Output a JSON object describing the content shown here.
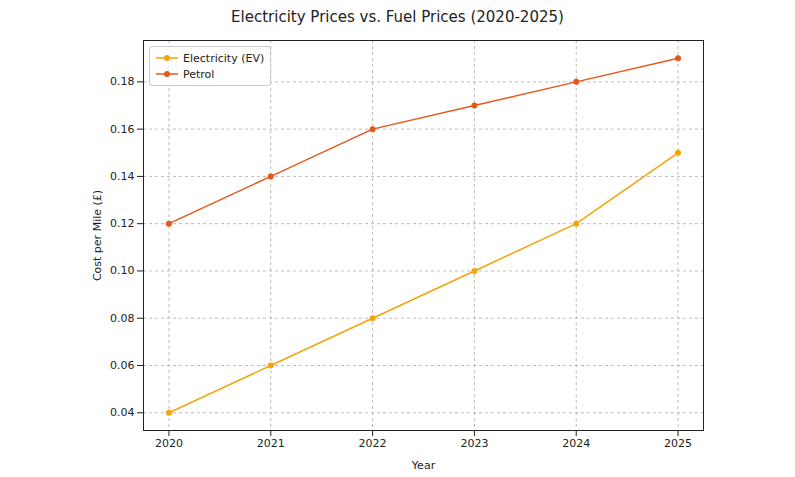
{
  "chart_data": {
    "type": "line",
    "title": "Electricity Prices vs. Fuel Prices (2020-2025)",
    "x_label": "Year",
    "y_label": "Cost per Mile (£)",
    "x": [
      2020,
      2021,
      2022,
      2023,
      2024,
      2025
    ],
    "series": [
      {
        "name": "Electricity (EV)",
        "color": "#f5a30a",
        "marker": "circle",
        "values": [
          0.04,
          0.06,
          0.08,
          0.1,
          0.12,
          0.15
        ]
      },
      {
        "name": "Petrol",
        "color": "#e6581a",
        "marker": "circle",
        "values": [
          0.12,
          0.14,
          0.16,
          0.17,
          0.18,
          0.19
        ]
      }
    ],
    "xlim": [
      2019.75,
      2025.25
    ],
    "xticks": [
      2020,
      2021,
      2022,
      2023,
      2024,
      2025
    ],
    "ylim": [
      0.0325,
      0.1975
    ],
    "yticks": [
      0.04,
      0.06,
      0.08,
      {
        "value": 0.1,
        "label": "0.10"
      },
      0.12,
      0.14,
      0.16,
      0.18
    ],
    "grid": true,
    "legend": "upper left"
  }
}
